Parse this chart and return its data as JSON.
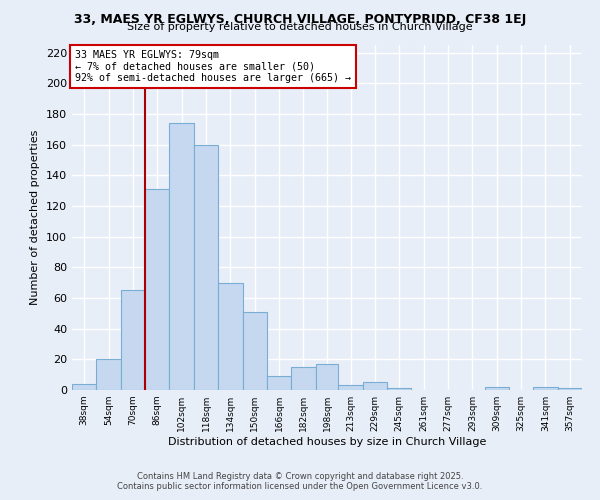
{
  "title": "33, MAES YR EGLWYS, CHURCH VILLAGE, PONTYPRIDD, CF38 1EJ",
  "subtitle": "Size of property relative to detached houses in Church Village",
  "xlabel": "Distribution of detached houses by size in Church Village",
  "ylabel": "Number of detached properties",
  "bar_labels": [
    "38sqm",
    "54sqm",
    "70sqm",
    "86sqm",
    "102sqm",
    "118sqm",
    "134sqm",
    "150sqm",
    "166sqm",
    "182sqm",
    "198sqm",
    "213sqm",
    "229sqm",
    "245sqm",
    "261sqm",
    "277sqm",
    "293sqm",
    "309sqm",
    "325sqm",
    "341sqm",
    "357sqm"
  ],
  "bar_values": [
    4,
    20,
    65,
    131,
    174,
    160,
    70,
    51,
    9,
    15,
    17,
    3,
    5,
    1,
    0,
    0,
    0,
    2,
    0,
    2,
    1
  ],
  "bin_starts": [
    38,
    54,
    70,
    86,
    102,
    118,
    134,
    150,
    166,
    182,
    198,
    213,
    229,
    245,
    261,
    277,
    293,
    309,
    325,
    341,
    357
  ],
  "bar_color": "#c5d8f0",
  "bar_edge_color": "#7aadd4",
  "ylim": [
    0,
    225
  ],
  "yticks": [
    0,
    20,
    40,
    60,
    80,
    100,
    120,
    140,
    160,
    180,
    200,
    220
  ],
  "annotation_title": "33 MAES YR EGLWYS: 79sqm",
  "annotation_line1": "← 7% of detached houses are smaller (50)",
  "annotation_line2": "92% of semi-detached houses are larger (665) →",
  "vline_x": 86,
  "vline_color": "#aa0000",
  "footnote1": "Contains HM Land Registry data © Crown copyright and database right 2025.",
  "footnote2": "Contains public sector information licensed under the Open Government Licence v3.0.",
  "background_color": "#e8eef8",
  "grid_color": "#ffffff"
}
